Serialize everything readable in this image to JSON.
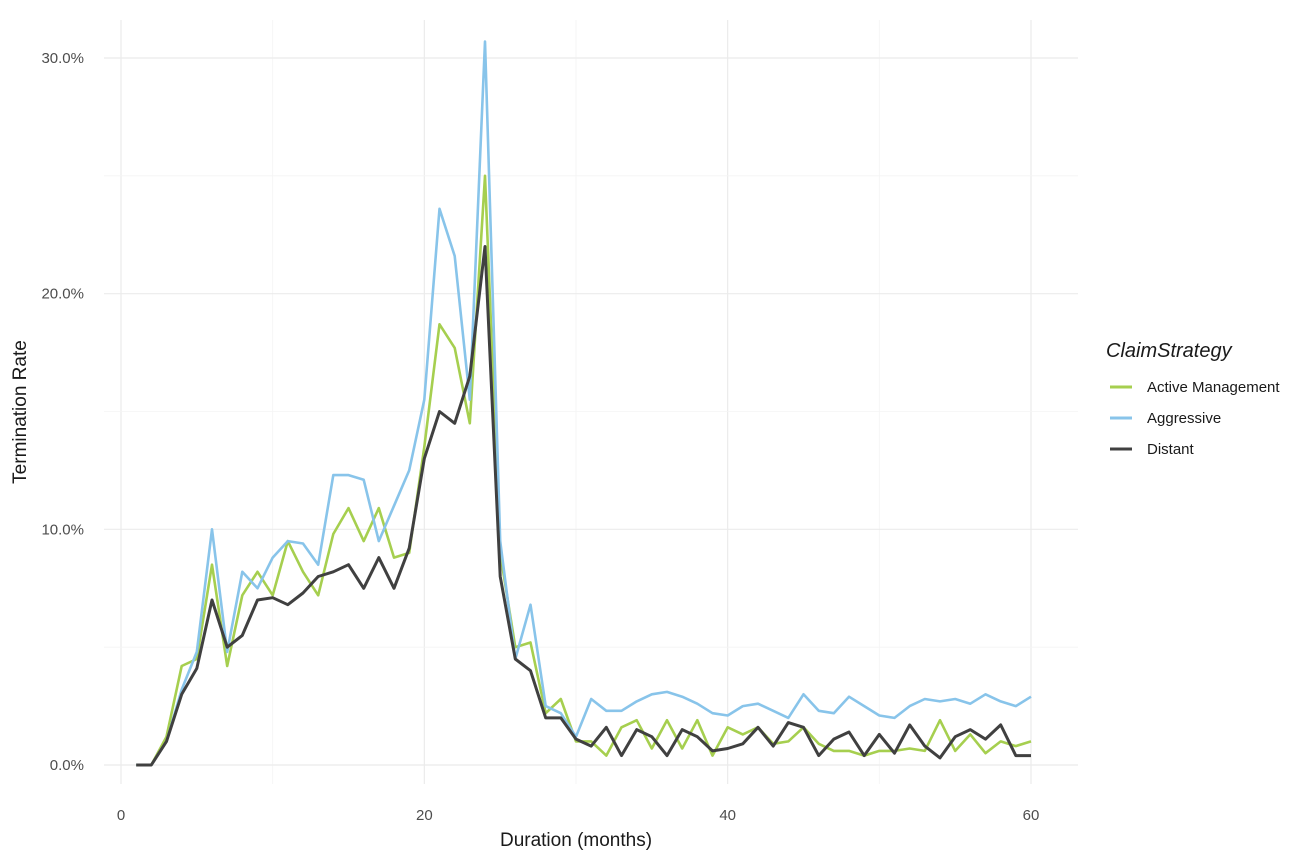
{
  "chart_data": {
    "type": "line",
    "title": "",
    "xlabel": "Duration (months)",
    "ylabel": "Termination Rate",
    "xlim": [
      0,
      60
    ],
    "ylim": [
      -0.8,
      30.5
    ],
    "x_ticks": [
      0,
      20,
      40,
      60
    ],
    "x_tick_labels": [
      "0",
      "20",
      "40",
      "60"
    ],
    "y_ticks": [
      0,
      10,
      20,
      30
    ],
    "y_tick_labels": [
      "0.0%",
      "10.0%",
      "20.0%",
      "30.0%"
    ],
    "grid": true,
    "legend": {
      "title": "ClaimStrategy",
      "position": "right"
    },
    "x": [
      1,
      2,
      3,
      4,
      5,
      6,
      7,
      8,
      9,
      10,
      11,
      12,
      13,
      14,
      15,
      16,
      17,
      18,
      19,
      20,
      21,
      22,
      23,
      24,
      25,
      26,
      27,
      28,
      29,
      30,
      31,
      32,
      33,
      34,
      35,
      36,
      37,
      38,
      39,
      40,
      41,
      42,
      43,
      44,
      45,
      46,
      47,
      48,
      49,
      50,
      51,
      52,
      53,
      54,
      55,
      56,
      57,
      58,
      59,
      60
    ],
    "series": [
      {
        "name": "Active Management",
        "color": "#a6cf4f",
        "values": [
          0,
          0,
          1.2,
          4.2,
          4.5,
          8.5,
          4.2,
          7.2,
          8.2,
          7.2,
          9.5,
          8.2,
          7.2,
          9.8,
          10.9,
          9.5,
          10.9,
          8.8,
          9.0,
          13.5,
          18.7,
          17.7,
          14.5,
          25.0,
          9.0,
          5.0,
          5.2,
          2.2,
          2.8,
          1.0,
          1.0,
          0.4,
          1.6,
          1.9,
          0.7,
          1.9,
          0.7,
          1.9,
          0.4,
          1.6,
          1.3,
          1.6,
          0.9,
          1.0,
          1.6,
          0.9,
          0.6,
          0.6,
          0.4,
          0.6,
          0.6,
          0.7,
          0.6,
          1.9,
          0.6,
          1.3,
          0.5,
          1.0,
          0.8,
          1.0
        ]
      },
      {
        "name": "Aggressive",
        "color": "#88c4ea",
        "values": [
          0,
          0,
          1.0,
          3.2,
          4.8,
          10.0,
          4.8,
          8.2,
          7.5,
          8.8,
          9.5,
          9.4,
          8.5,
          12.3,
          12.3,
          12.1,
          9.5,
          11.0,
          12.5,
          15.5,
          23.6,
          21.6,
          15.5,
          30.7,
          9.5,
          4.5,
          6.8,
          2.5,
          2.2,
          1.2,
          2.8,
          2.3,
          2.3,
          2.7,
          3.0,
          3.1,
          2.9,
          2.6,
          2.2,
          2.1,
          2.5,
          2.6,
          2.3,
          2.0,
          3.0,
          2.3,
          2.2,
          2.9,
          2.5,
          2.1,
          2.0,
          2.5,
          2.8,
          2.7,
          2.8,
          2.6,
          3.0,
          2.7,
          2.5,
          2.9
        ]
      },
      {
        "name": "Distant",
        "color": "#404040",
        "values": [
          0,
          0,
          1.0,
          3.0,
          4.1,
          7.0,
          5.0,
          5.5,
          7.0,
          7.1,
          6.8,
          7.3,
          8.0,
          8.2,
          8.5,
          7.5,
          8.8,
          7.5,
          9.2,
          13.0,
          15.0,
          14.5,
          16.5,
          22.0,
          8.0,
          4.5,
          4.0,
          2.0,
          2.0,
          1.1,
          0.8,
          1.6,
          0.4,
          1.5,
          1.2,
          0.4,
          1.5,
          1.2,
          0.6,
          0.7,
          0.9,
          1.6,
          0.8,
          1.8,
          1.6,
          0.4,
          1.1,
          1.4,
          0.4,
          1.3,
          0.5,
          1.7,
          0.8,
          0.3,
          1.2,
          1.5,
          1.1,
          1.7,
          0.4,
          0.4
        ]
      }
    ]
  }
}
